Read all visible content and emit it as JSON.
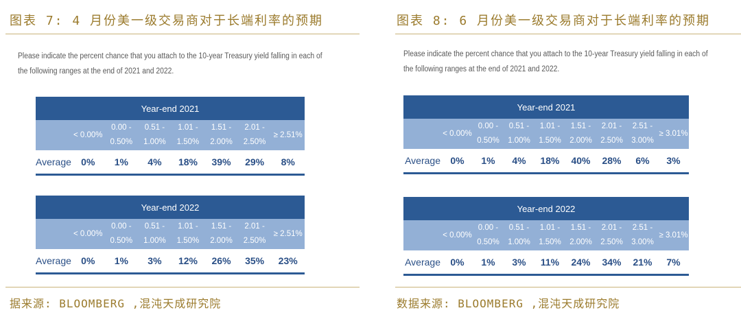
{
  "colors": {
    "header_bg": "#2c5a94",
    "range_bg": "#93b0d6",
    "accent_gold": "#9b7b2d",
    "value_text": "#2a4f86"
  },
  "chart_data": [
    {
      "type": "table",
      "title": "图表 7: 4 月份美一级交易商对于长端利率的预期",
      "question": "Please indicate the percent chance that you attach to the 10-year Treasury yield falling in each of the following ranges at the end of 2021 and 2022.",
      "row_label": "Average",
      "tables": [
        {
          "caption": "Year-end 2021",
          "ranges": [
            [
              "",
              "< 0.00%"
            ],
            [
              "0.00 -",
              "0.50%"
            ],
            [
              "0.51 -",
              "1.00%"
            ],
            [
              "1.01 -",
              "1.50%"
            ],
            [
              "1.51 -",
              "2.00%"
            ],
            [
              "2.01 -",
              "2.50%"
            ],
            [
              "",
              "≥ 2.51%"
            ]
          ],
          "values": [
            "0%",
            "1%",
            "4%",
            "18%",
            "39%",
            "29%",
            "8%"
          ]
        },
        {
          "caption": "Year-end 2022",
          "ranges": [
            [
              "",
              "< 0.00%"
            ],
            [
              "0.00 -",
              "0.50%"
            ],
            [
              "0.51 -",
              "1.00%"
            ],
            [
              "1.01 -",
              "1.50%"
            ],
            [
              "1.51 -",
              "2.00%"
            ],
            [
              "2.01 -",
              "2.50%"
            ],
            [
              "",
              "≥ 2.51%"
            ]
          ],
          "values": [
            "0%",
            "1%",
            "3%",
            "12%",
            "26%",
            "35%",
            "23%"
          ]
        }
      ],
      "source": "据来源: BLOOMBERG ,混沌天成研究院"
    },
    {
      "type": "table",
      "title": "图表 8: 6 月份美一级交易商对于长端利率的预期",
      "question": "Please indicate the percent chance that you attach to the 10-year Treasury yield falling in each of the following ranges at the end of 2021 and 2022.",
      "row_label": "Average",
      "tables": [
        {
          "caption": "Year-end 2021",
          "ranges": [
            [
              "",
              "< 0.00%"
            ],
            [
              "0.00 -",
              "0.50%"
            ],
            [
              "0.51 -",
              "1.00%"
            ],
            [
              "1.01 -",
              "1.50%"
            ],
            [
              "1.51 -",
              "2.00%"
            ],
            [
              "2.01 -",
              "2.50%"
            ],
            [
              "2.51 -",
              "3.00%"
            ],
            [
              "",
              "≥ 3.01%"
            ]
          ],
          "values": [
            "0%",
            "1%",
            "4%",
            "18%",
            "40%",
            "28%",
            "6%",
            "3%"
          ]
        },
        {
          "caption": "Year-end 2022",
          "ranges": [
            [
              "",
              "< 0.00%"
            ],
            [
              "0.00 -",
              "0.50%"
            ],
            [
              "0.51 -",
              "1.00%"
            ],
            [
              "1.01 -",
              "1.50%"
            ],
            [
              "1.51 -",
              "2.00%"
            ],
            [
              "2.01 -",
              "2.50%"
            ],
            [
              "2.51 -",
              "3.00%"
            ],
            [
              "",
              "≥ 3.01%"
            ]
          ],
          "values": [
            "0%",
            "1%",
            "3%",
            "11%",
            "24%",
            "34%",
            "21%",
            "7%"
          ]
        }
      ],
      "source": "数据来源: BLOOMBERG ,混沌天成研究院"
    }
  ]
}
